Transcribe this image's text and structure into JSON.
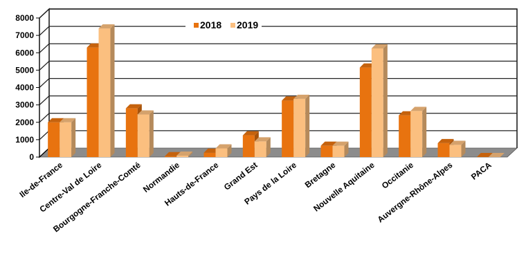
{
  "chart_data": {
    "type": "bar",
    "categories": [
      "Ile-de-France",
      "Centre-Val de Loire",
      "Bourgogne-Franche-Comté",
      "Normandie",
      "Hauts-de-France",
      "Grand Est",
      "Pays de la Loire",
      "Bretagne",
      "Nouvelle Aquitaine",
      "Occitanie",
      "Auvergne-Rhône-Alpes",
      "PACA"
    ],
    "series": [
      {
        "name": "2018",
        "values": [
          2000,
          6300,
          2800,
          50,
          250,
          1250,
          3250,
          650,
          5150,
          2400,
          800,
          0
        ],
        "color": "#e8730f"
      },
      {
        "name": "2019",
        "values": [
          2000,
          7400,
          2450,
          80,
          500,
          900,
          3350,
          650,
          6250,
          2650,
          700,
          0
        ],
        "color": "#fbbf7f"
      }
    ],
    "yticks": [
      "0",
      "1000",
      "2000",
      "3000",
      "4000",
      "5000",
      "6000",
      "7000",
      "8000"
    ],
    "ylim": [
      0,
      8000
    ],
    "grid": true,
    "legend_position": "top-center",
    "title": "",
    "xlabel": "",
    "ylabel": ""
  }
}
